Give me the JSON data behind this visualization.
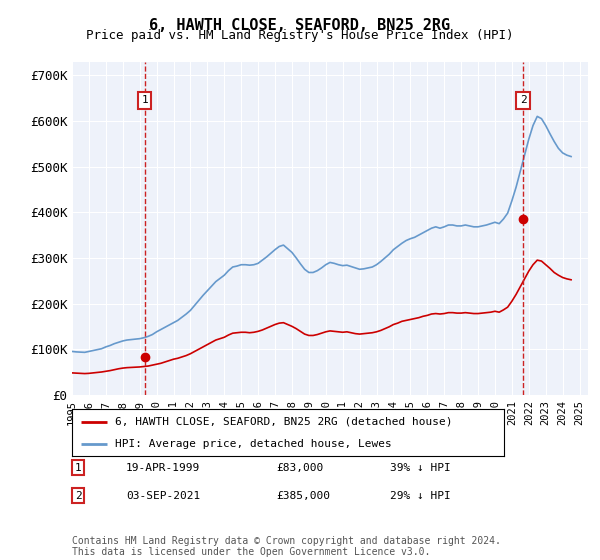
{
  "title": "6, HAWTH CLOSE, SEAFORD, BN25 2RG",
  "subtitle": "Price paid vs. HM Land Registry's House Price Index (HPI)",
  "legend_line1": "6, HAWTH CLOSE, SEAFORD, BN25 2RG (detached house)",
  "legend_line2": "HPI: Average price, detached house, Lewes",
  "footnote": "Contains HM Land Registry data © Crown copyright and database right 2024.\nThis data is licensed under the Open Government Licence v3.0.",
  "point1_date": "19-APR-1999",
  "point1_price": "£83,000",
  "point1_hpi": "39% ↓ HPI",
  "point1_year": 1999.3,
  "point1_value": 83000,
  "point2_date": "03-SEP-2021",
  "point2_price": "£385,000",
  "point2_hpi": "29% ↓ HPI",
  "point2_year": 2021.67,
  "point2_value": 385000,
  "ylim": [
    0,
    730000
  ],
  "yticks": [
    0,
    100000,
    200000,
    300000,
    400000,
    500000,
    600000,
    700000
  ],
  "ytick_labels": [
    "£0",
    "£100K",
    "£200K",
    "£300K",
    "£400K",
    "£500K",
    "£600K",
    "£700K"
  ],
  "plot_bg": "#eef2fa",
  "red_color": "#cc0000",
  "blue_color": "#6699cc",
  "marker_box_color": "#cc2222",
  "grid_color": "#ffffff",
  "hpi_x": [
    1995.0,
    1995.25,
    1995.5,
    1995.75,
    1996.0,
    1996.25,
    1996.5,
    1996.75,
    1997.0,
    1997.25,
    1997.5,
    1997.75,
    1998.0,
    1998.25,
    1998.5,
    1998.75,
    1999.0,
    1999.25,
    1999.5,
    1999.75,
    2000.0,
    2000.25,
    2000.5,
    2000.75,
    2001.0,
    2001.25,
    2001.5,
    2001.75,
    2002.0,
    2002.25,
    2002.5,
    2002.75,
    2003.0,
    2003.25,
    2003.5,
    2003.75,
    2004.0,
    2004.25,
    2004.5,
    2004.75,
    2005.0,
    2005.25,
    2005.5,
    2005.75,
    2006.0,
    2006.25,
    2006.5,
    2006.75,
    2007.0,
    2007.25,
    2007.5,
    2007.75,
    2008.0,
    2008.25,
    2008.5,
    2008.75,
    2009.0,
    2009.25,
    2009.5,
    2009.75,
    2010.0,
    2010.25,
    2010.5,
    2010.75,
    2011.0,
    2011.25,
    2011.5,
    2011.75,
    2012.0,
    2012.25,
    2012.5,
    2012.75,
    2013.0,
    2013.25,
    2013.5,
    2013.75,
    2014.0,
    2014.25,
    2014.5,
    2014.75,
    2015.0,
    2015.25,
    2015.5,
    2015.75,
    2016.0,
    2016.25,
    2016.5,
    2016.75,
    2017.0,
    2017.25,
    2017.5,
    2017.75,
    2018.0,
    2018.25,
    2018.5,
    2018.75,
    2019.0,
    2019.25,
    2019.5,
    2019.75,
    2020.0,
    2020.25,
    2020.5,
    2020.75,
    2021.0,
    2021.25,
    2021.5,
    2021.75,
    2022.0,
    2022.25,
    2022.5,
    2022.75,
    2023.0,
    2023.25,
    2023.5,
    2023.75,
    2024.0,
    2024.25,
    2024.5
  ],
  "hpi_y": [
    95000,
    94000,
    93500,
    93000,
    95000,
    97000,
    99000,
    101000,
    105000,
    108000,
    112000,
    115000,
    118000,
    120000,
    121000,
    122000,
    123000,
    125000,
    128000,
    132000,
    138000,
    143000,
    148000,
    153000,
    158000,
    163000,
    170000,
    177000,
    185000,
    196000,
    207000,
    218000,
    228000,
    238000,
    248000,
    255000,
    262000,
    272000,
    280000,
    282000,
    285000,
    285000,
    284000,
    285000,
    288000,
    295000,
    302000,
    310000,
    318000,
    325000,
    328000,
    320000,
    312000,
    300000,
    287000,
    275000,
    268000,
    268000,
    272000,
    278000,
    285000,
    290000,
    288000,
    285000,
    283000,
    284000,
    281000,
    278000,
    275000,
    276000,
    278000,
    280000,
    285000,
    292000,
    300000,
    308000,
    318000,
    325000,
    332000,
    338000,
    342000,
    345000,
    350000,
    355000,
    360000,
    365000,
    368000,
    365000,
    368000,
    372000,
    372000,
    370000,
    370000,
    372000,
    370000,
    368000,
    368000,
    370000,
    372000,
    375000,
    378000,
    375000,
    385000,
    398000,
    425000,
    455000,
    490000,
    525000,
    560000,
    590000,
    610000,
    605000,
    590000,
    572000,
    555000,
    540000,
    530000,
    525000,
    522000
  ],
  "red_x": [
    1995.0,
    1995.25,
    1995.5,
    1995.75,
    1996.0,
    1996.25,
    1996.5,
    1996.75,
    1997.0,
    1997.25,
    1997.5,
    1997.75,
    1998.0,
    1998.25,
    1998.5,
    1998.75,
    1999.0,
    1999.25,
    1999.5,
    1999.75,
    2000.0,
    2000.25,
    2000.5,
    2000.75,
    2001.0,
    2001.25,
    2001.5,
    2001.75,
    2002.0,
    2002.25,
    2002.5,
    2002.75,
    2003.0,
    2003.25,
    2003.5,
    2003.75,
    2004.0,
    2004.25,
    2004.5,
    2004.75,
    2005.0,
    2005.25,
    2005.5,
    2005.75,
    2006.0,
    2006.25,
    2006.5,
    2006.75,
    2007.0,
    2007.25,
    2007.5,
    2007.75,
    2008.0,
    2008.25,
    2008.5,
    2008.75,
    2009.0,
    2009.25,
    2009.5,
    2009.75,
    2010.0,
    2010.25,
    2010.5,
    2010.75,
    2011.0,
    2011.25,
    2011.5,
    2011.75,
    2012.0,
    2012.25,
    2012.5,
    2012.75,
    2013.0,
    2013.25,
    2013.5,
    2013.75,
    2014.0,
    2014.25,
    2014.5,
    2014.75,
    2015.0,
    2015.25,
    2015.5,
    2015.75,
    2016.0,
    2016.25,
    2016.5,
    2016.75,
    2017.0,
    2017.25,
    2017.5,
    2017.75,
    2018.0,
    2018.25,
    2018.5,
    2018.75,
    2019.0,
    2019.25,
    2019.5,
    2019.75,
    2020.0,
    2020.25,
    2020.5,
    2020.75,
    2021.0,
    2021.25,
    2021.5,
    2021.75,
    2022.0,
    2022.25,
    2022.5,
    2022.75,
    2023.0,
    2023.25,
    2023.5,
    2023.75,
    2024.0,
    2024.25,
    2024.5
  ],
  "red_y": [
    48000,
    47500,
    47000,
    46500,
    47000,
    48000,
    49000,
    50000,
    51500,
    53000,
    55000,
    57000,
    58500,
    59500,
    60000,
    60500,
    61000,
    62000,
    63000,
    65000,
    67000,
    69000,
    72000,
    75000,
    78000,
    80000,
    83000,
    86000,
    90000,
    95000,
    100000,
    105000,
    110000,
    115000,
    120000,
    123000,
    126000,
    131000,
    135000,
    136000,
    137000,
    137000,
    136000,
    137000,
    139000,
    142000,
    146000,
    150000,
    154000,
    157000,
    158000,
    154000,
    150000,
    145000,
    139000,
    133000,
    130000,
    130000,
    132000,
    135000,
    138000,
    140000,
    139000,
    138000,
    137000,
    138000,
    136000,
    134000,
    133000,
    134000,
    135000,
    136000,
    138000,
    141000,
    145000,
    149000,
    154000,
    157000,
    161000,
    163000,
    165000,
    167000,
    169000,
    172000,
    174000,
    177000,
    178000,
    177000,
    178000,
    180000,
    180000,
    179000,
    179000,
    180000,
    179000,
    178000,
    178000,
    179000,
    180000,
    181000,
    183000,
    181000,
    186000,
    192000,
    205000,
    220000,
    237000,
    254000,
    271000,
    285000,
    295000,
    293000,
    285000,
    277000,
    268000,
    262000,
    257000,
    254000,
    252000
  ]
}
